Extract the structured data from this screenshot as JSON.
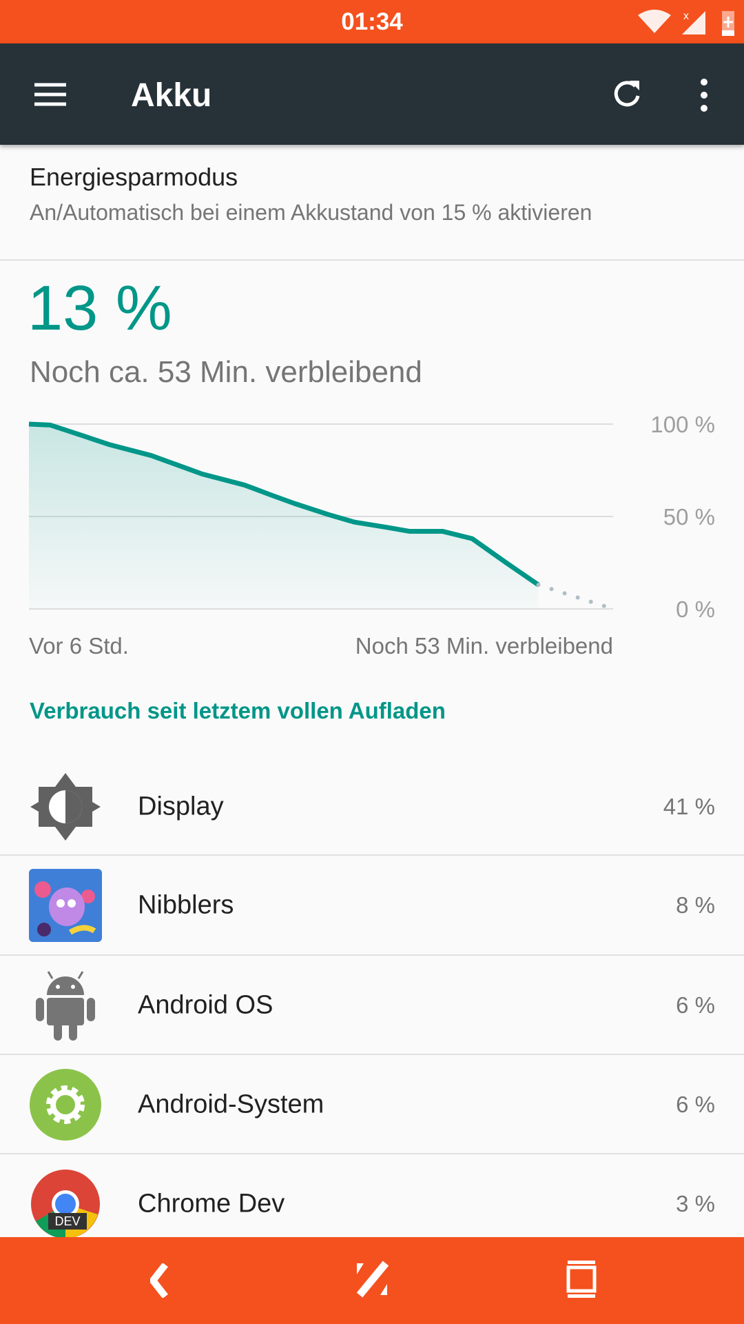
{
  "status_bar": {
    "time": "01:34",
    "icons": [
      "wifi-icon",
      "signal-icon",
      "battery-charging-icon"
    ],
    "color": "#f4511e"
  },
  "toolbar": {
    "title": "Akku",
    "icons": [
      "menu-icon",
      "refresh-icon",
      "more-vert-icon"
    ],
    "color": "#263238"
  },
  "battery_saver": {
    "title": "Energiesparmodus",
    "subtitle": "An/Automatisch bei einem Akkustand von 15 % aktivieren"
  },
  "battery": {
    "level": "13 %",
    "remaining": "Noch ca. 53 Min. verbleibend",
    "accent": "#009688"
  },
  "chart_data": {
    "type": "area",
    "x_unit": "hours relative to now",
    "xlim": [
      -6,
      0.88
    ],
    "ylim": [
      0,
      100
    ],
    "y_ticks": [
      "100 %",
      "50 %",
      "0 %"
    ],
    "x_labels": {
      "start": "Vor 6 Std.",
      "end": "Noch 53 Min. verbleibend"
    },
    "grid": true,
    "series": [
      {
        "x": [
          -6,
          -5.75,
          -5.45,
          -5.06,
          -4.56,
          -4.26,
          -3.96,
          -3.46,
          -3.17,
          -2.87,
          -2.47,
          -2.17,
          -1.77,
          -1.52,
          -1.13,
          -0.78,
          -0.38,
          0
        ],
        "y": [
          100,
          99.5,
          95,
          89,
          83,
          78,
          73,
          67,
          62,
          57,
          51,
          47,
          44,
          42,
          42,
          38,
          25,
          13
        ]
      }
    ],
    "projection": {
      "x": [
        0,
        0.88
      ],
      "y": [
        13,
        0
      ]
    }
  },
  "usage": {
    "header": "Verbrauch seit letztem vollen Aufladen",
    "items": [
      {
        "label": "Display",
        "percent": "41 %",
        "icon": "brightness-icon"
      },
      {
        "label": "Nibblers",
        "percent": "8 %",
        "icon": "nibblers-app-icon"
      },
      {
        "label": "Android OS",
        "percent": "6 %",
        "icon": "android-icon"
      },
      {
        "label": "Android-System",
        "percent": "6 %",
        "icon": "settings-gear-icon"
      },
      {
        "label": "Chrome Dev",
        "percent": "3 %",
        "icon": "chrome-dev-icon"
      }
    ]
  },
  "nav_bar": {
    "icons": [
      "back-icon",
      "home-icon",
      "recents-icon"
    ]
  }
}
